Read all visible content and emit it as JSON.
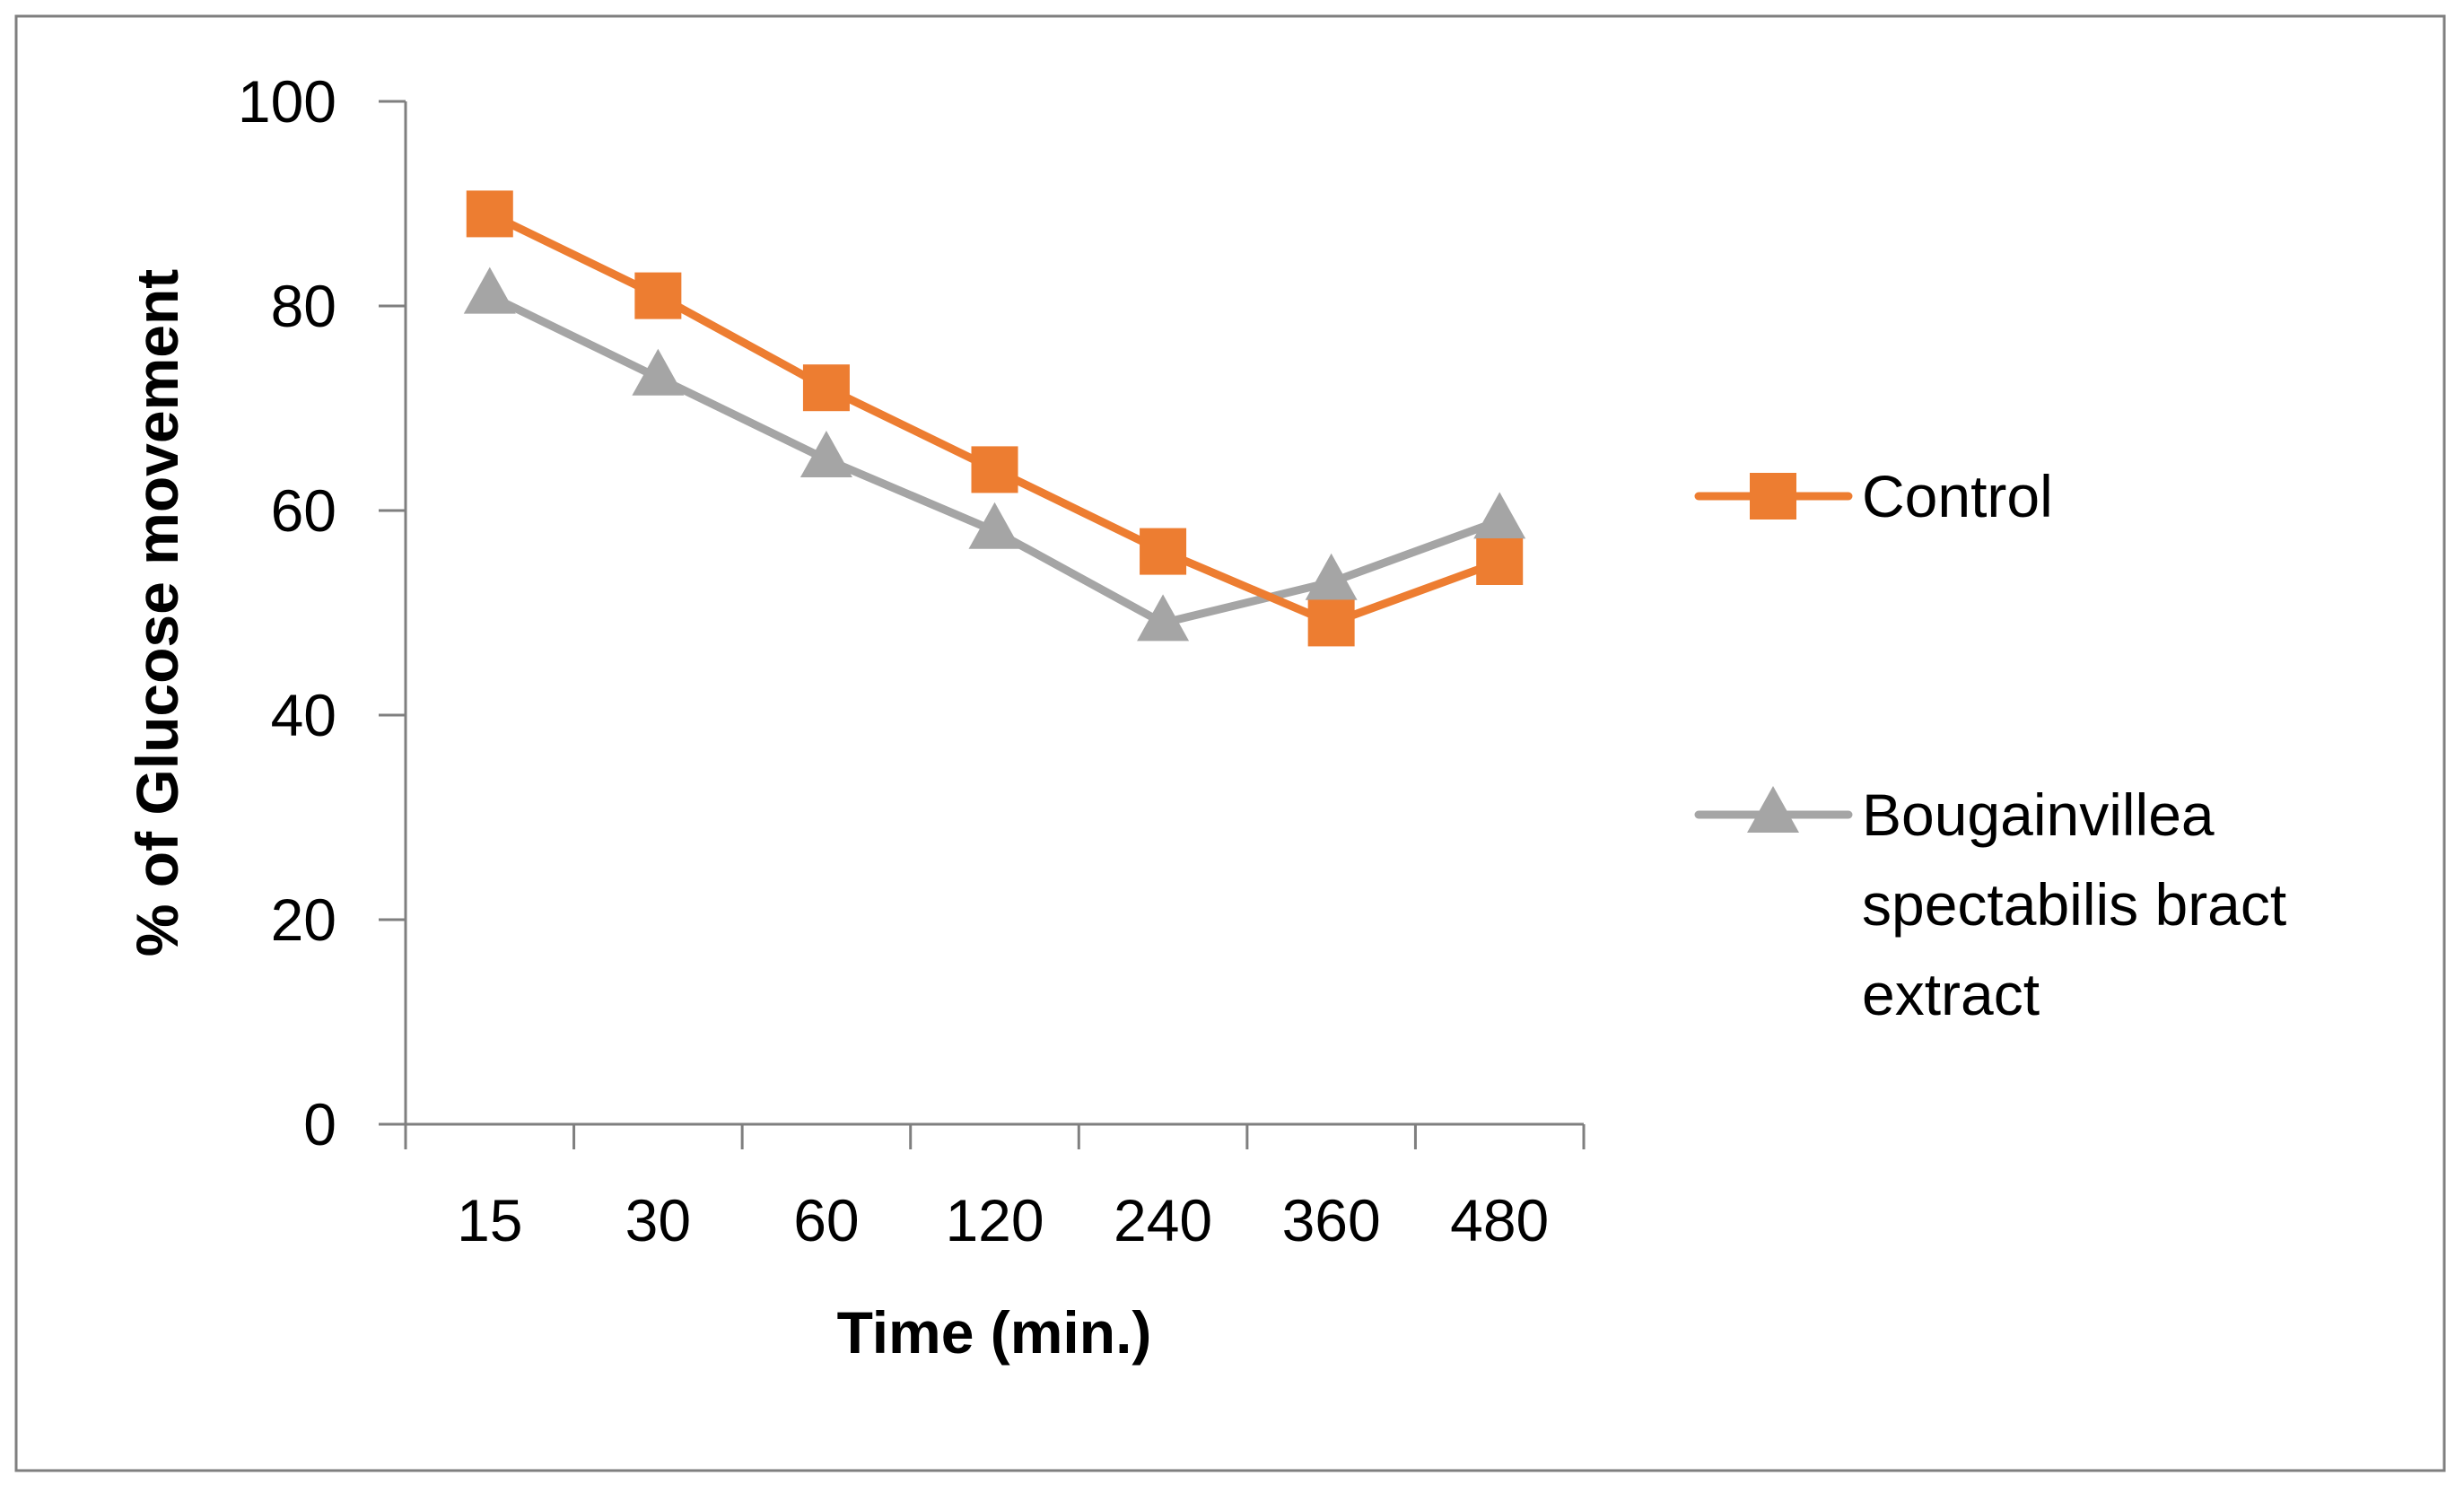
{
  "chart_data": {
    "type": "line",
    "title": "",
    "xlabel": "Time (min.)",
    "ylabel": "% of Glucose movement",
    "categories": [
      "15",
      "30",
      "60",
      "120",
      "240",
      "360",
      "480"
    ],
    "ylim": [
      0,
      100
    ],
    "yticks": [
      "0",
      "20",
      "40",
      "60",
      "80",
      "100"
    ],
    "grid": false,
    "legend_position": "right",
    "series": [
      {
        "name": "Control",
        "legend_lines": [
          "Control"
        ],
        "marker": "square",
        "color": "#ED7D31",
        "values": [
          89,
          81,
          72,
          64,
          56,
          49,
          55
        ]
      },
      {
        "name": "Bougainvillea spectabilis bract extract",
        "legend_lines": [
          "Bougainvillea",
          "spectabilis bract",
          "extract"
        ],
        "marker": "triangle",
        "color": "#A5A5A5",
        "values": [
          81,
          73,
          65,
          58,
          49,
          53,
          59
        ]
      }
    ]
  }
}
